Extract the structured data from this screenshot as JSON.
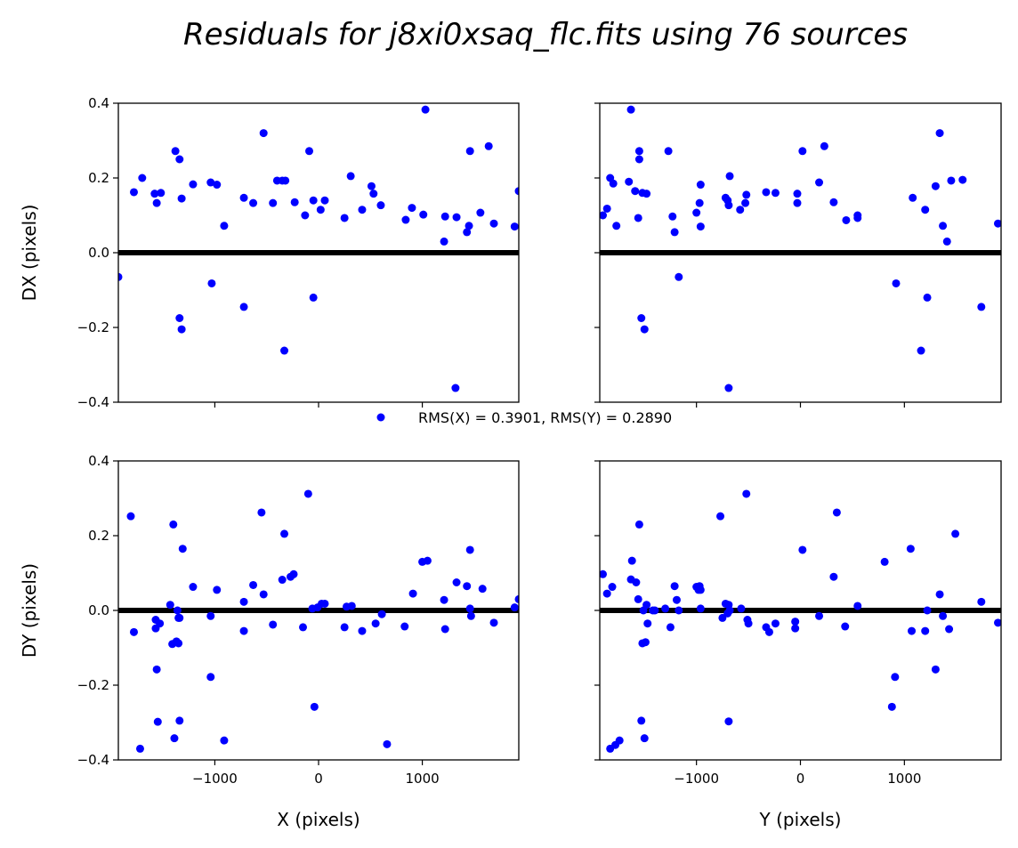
{
  "chart_data": {
    "type": "scatter",
    "title": "Residuals for j8xi0xsaq_flc.fits using 76 sources",
    "legend": {
      "label": "RMS(X) = 0.3901, RMS(Y) = 0.2890",
      "placement": "center"
    },
    "colors": {
      "points": "#0000ff",
      "zero_line": "#000000"
    },
    "panels": [
      {
        "id": "dx-vs-x",
        "xlabel": "",
        "ylabel": "DX (pixels)",
        "xlim": [
          -1930,
          1930
        ],
        "ylim": [
          -0.4,
          0.4
        ],
        "xticks": [],
        "yticks": [
          {
            "v": 0.4,
            "label": "0.4"
          },
          {
            "v": 0.2,
            "label": "0.2"
          },
          {
            "v": 0.0,
            "label": "0.0"
          },
          {
            "v": -0.2,
            "label": "−0.2"
          },
          {
            "v": -0.4,
            "label": "−0.4"
          }
        ],
        "x": [
          -1930,
          -1780,
          -1700,
          -1580,
          -1560,
          -1520,
          -1380,
          -1340,
          -1320,
          -1340,
          -1320,
          -1210,
          -1040,
          -1030,
          -980,
          -910,
          -720,
          -720,
          -630,
          -530,
          -440,
          -400,
          -350,
          -330,
          -320,
          -230,
          -130,
          -90,
          -50,
          -50,
          20,
          60,
          250,
          310,
          420,
          510,
          530,
          600,
          840,
          900,
          1010,
          1030,
          1210,
          1220,
          1320,
          1330,
          1430,
          1450,
          1460,
          1560,
          1640,
          1690,
          1890,
          1930
        ],
        "y": [
          -0.065,
          0.162,
          0.2,
          0.158,
          0.133,
          0.16,
          0.272,
          0.25,
          0.145,
          -0.175,
          -0.205,
          0.183,
          0.188,
          -0.082,
          0.182,
          0.072,
          0.147,
          -0.145,
          0.133,
          0.32,
          0.133,
          0.193,
          0.193,
          -0.262,
          0.193,
          0.135,
          0.1,
          0.272,
          0.14,
          -0.12,
          0.115,
          0.14,
          0.093,
          0.205,
          0.115,
          0.178,
          0.158,
          0.127,
          0.088,
          0.12,
          0.102,
          0.383,
          0.03,
          0.097,
          -0.362,
          0.095,
          0.055,
          0.072,
          0.272,
          0.107,
          0.285,
          0.078,
          0.07,
          0.165
        ]
      },
      {
        "id": "dx-vs-y",
        "xlabel": "",
        "ylabel": "",
        "xlim": [
          -1930,
          1930
        ],
        "ylim": [
          -0.4,
          0.4
        ],
        "xticks": [],
        "yticks": [],
        "x": [
          -1900,
          -1860,
          -1830,
          -1800,
          -1770,
          -1650,
          -1630,
          -1590,
          -1560,
          -1550,
          -1550,
          -1530,
          -1520,
          -1500,
          -1480,
          -1270,
          -1230,
          -1210,
          -1170,
          -1000,
          -970,
          -960,
          -960,
          -720,
          -700,
          -690,
          -690,
          -680,
          -580,
          -530,
          -520,
          -330,
          -240,
          -30,
          -30,
          20,
          180,
          230,
          320,
          440,
          550,
          550,
          920,
          1080,
          1160,
          1200,
          1220,
          1300,
          1340,
          1370,
          1410,
          1450,
          1560,
          1740,
          1900
        ],
        "y": [
          0.1,
          0.118,
          0.2,
          0.185,
          0.072,
          0.19,
          0.383,
          0.165,
          0.093,
          0.272,
          0.25,
          -0.175,
          0.16,
          -0.205,
          0.158,
          0.272,
          0.097,
          0.055,
          -0.065,
          0.107,
          0.133,
          0.07,
          0.182,
          0.147,
          0.14,
          0.127,
          -0.362,
          0.205,
          0.115,
          0.133,
          0.155,
          0.162,
          0.16,
          0.158,
          0.133,
          0.272,
          0.188,
          0.285,
          0.135,
          0.087,
          0.1,
          0.093,
          -0.082,
          0.147,
          -0.262,
          0.115,
          -0.12,
          0.178,
          0.32,
          0.072,
          0.03,
          0.193,
          0.195,
          -0.145,
          0.078
        ]
      },
      {
        "id": "dy-vs-x",
        "xlabel": "X (pixels)",
        "ylabel": "DY (pixels)",
        "xlim": [
          -1930,
          1930
        ],
        "ylim": [
          -0.4,
          0.4
        ],
        "xticks": [
          {
            "v": -1000,
            "label": "−1000"
          },
          {
            "v": 0,
            "label": "0"
          },
          {
            "v": 1000,
            "label": "1000"
          }
        ],
        "yticks": [
          {
            "v": 0.4,
            "label": "0.4"
          },
          {
            "v": 0.2,
            "label": "0.2"
          },
          {
            "v": 0.0,
            "label": "0.0"
          },
          {
            "v": -0.2,
            "label": "−0.2"
          },
          {
            "v": -0.4,
            "label": "−0.4"
          }
        ],
        "x": [
          -1810,
          -1780,
          -1720,
          -1570,
          -1570,
          -1560,
          -1550,
          -1530,
          -1430,
          -1410,
          -1400,
          -1390,
          -1370,
          -1360,
          -1350,
          -1350,
          -1340,
          -1340,
          -1310,
          -1210,
          -1040,
          -1040,
          -980,
          -910,
          -720,
          -720,
          -630,
          -550,
          -530,
          -440,
          -350,
          -330,
          -270,
          -240,
          -150,
          -100,
          -60,
          -40,
          -10,
          30,
          60,
          250,
          270,
          320,
          420,
          550,
          610,
          660,
          830,
          910,
          1000,
          1050,
          1210,
          1220,
          1330,
          1430,
          1460,
          1460,
          1470,
          1580,
          1690,
          1890,
          1930
        ],
        "y": [
          0.252,
          -0.058,
          -0.37,
          -0.025,
          -0.048,
          -0.158,
          -0.298,
          -0.035,
          0.015,
          -0.09,
          0.23,
          -0.342,
          -0.083,
          0.0,
          -0.088,
          -0.02,
          -0.295,
          -0.02,
          0.165,
          0.063,
          -0.015,
          -0.178,
          0.055,
          -0.348,
          0.023,
          -0.055,
          0.068,
          0.262,
          0.043,
          -0.038,
          0.082,
          0.205,
          0.09,
          0.097,
          -0.045,
          0.312,
          0.005,
          -0.258,
          0.008,
          0.018,
          0.018,
          -0.045,
          0.01,
          0.012,
          -0.055,
          -0.035,
          -0.01,
          -0.358,
          -0.043,
          0.045,
          0.13,
          0.133,
          0.028,
          -0.05,
          0.075,
          0.065,
          0.162,
          0.005,
          -0.015,
          0.058,
          -0.033,
          0.008,
          0.03
        ]
      },
      {
        "id": "dy-vs-y",
        "xlabel": "Y (pixels)",
        "ylabel": "",
        "xlim": [
          -1930,
          1930
        ],
        "ylim": [
          -0.4,
          0.4
        ],
        "xticks": [
          {
            "v": -1000,
            "label": "−1000"
          },
          {
            "v": 0,
            "label": "0"
          },
          {
            "v": 1000,
            "label": "1000"
          }
        ],
        "yticks": [],
        "x": [
          -1900,
          -1860,
          -1830,
          -1810,
          -1780,
          -1740,
          -1630,
          -1620,
          -1580,
          -1560,
          -1550,
          -1530,
          -1520,
          -1510,
          -1500,
          -1490,
          -1480,
          -1470,
          -1420,
          -1400,
          -1300,
          -1250,
          -1210,
          -1190,
          -1170,
          -1000,
          -980,
          -970,
          -960,
          -960,
          -770,
          -750,
          -720,
          -700,
          -690,
          -690,
          -680,
          -570,
          -520,
          -510,
          -500,
          -330,
          -300,
          -240,
          -50,
          -50,
          20,
          180,
          320,
          350,
          430,
          550,
          810,
          880,
          910,
          1060,
          1070,
          1200,
          1220,
          1300,
          1340,
          1370,
          1430,
          1490,
          1740,
          1900
        ],
        "y": [
          0.097,
          0.045,
          -0.37,
          0.063,
          -0.36,
          -0.348,
          0.083,
          0.133,
          0.075,
          0.03,
          0.23,
          -0.295,
          -0.088,
          0.0,
          -0.342,
          -0.085,
          0.015,
          -0.035,
          0.0,
          0.0,
          0.005,
          -0.045,
          0.065,
          0.028,
          0.0,
          0.063,
          0.055,
          0.065,
          0.005,
          0.055,
          0.252,
          -0.02,
          0.018,
          -0.008,
          -0.297,
          0.015,
          0.0,
          0.005,
          0.312,
          -0.025,
          -0.035,
          -0.045,
          -0.058,
          -0.035,
          -0.03,
          -0.048,
          0.162,
          -0.015,
          0.09,
          0.262,
          -0.043,
          0.012,
          0.13,
          -0.258,
          -0.178,
          0.165,
          -0.055,
          -0.055,
          0.0,
          -0.158,
          0.043,
          -0.015,
          -0.05,
          0.205,
          0.023,
          -0.033
        ]
      }
    ]
  }
}
